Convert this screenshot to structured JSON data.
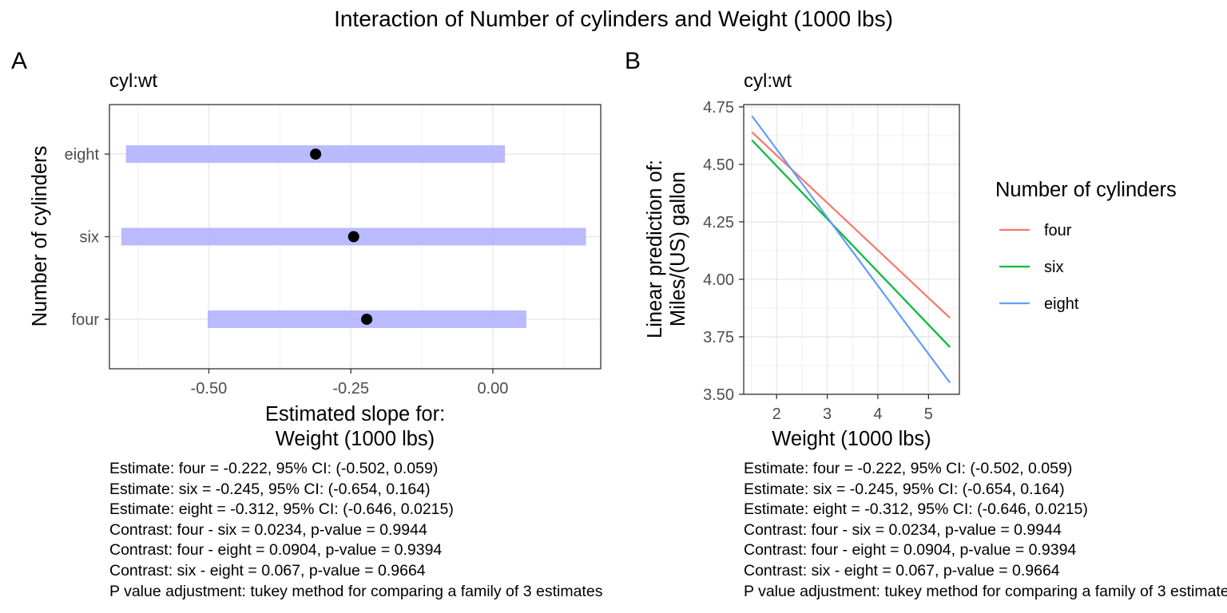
{
  "title": "Interaction of Number of cylinders and Weight (1000 lbs)",
  "chart_data": [
    {
      "type": "scatter",
      "tag": "A",
      "subtitle": "cyl:wt",
      "xlabel": "Estimated slope for:\nWeight (1000 lbs)",
      "ylabel": "Number of cylinders",
      "xlim": [
        -0.675,
        0.19
      ],
      "x_ticks": [
        -0.5,
        -0.25,
        0.0
      ],
      "x_tick_labels": [
        "-0.50",
        "-0.25",
        "0.00"
      ],
      "categories": [
        "four",
        "six",
        "eight"
      ],
      "estimates": [
        -0.222,
        -0.245,
        -0.312
      ],
      "ci_lower": [
        -0.502,
        -0.654,
        -0.646
      ],
      "ci_upper": [
        0.059,
        0.164,
        0.0215
      ],
      "ci_color": "#b3b3ff",
      "point_color": "#000000",
      "grid": true
    },
    {
      "type": "line",
      "tag": "B",
      "subtitle": "cyl:wt",
      "xlabel": "Weight (1000 lbs)",
      "ylabel": "Linear prediction of:\nMiles/(US) gallon",
      "xlim": [
        1.35,
        5.61
      ],
      "ylim": [
        3.5,
        4.76
      ],
      "x_ticks": [
        2,
        3,
        4,
        5
      ],
      "y_ticks": [
        3.5,
        3.75,
        4.0,
        4.25,
        4.5,
        4.75
      ],
      "y_tick_labels": [
        "3.50",
        "3.75",
        "4.00",
        "4.25",
        "4.50",
        "4.75"
      ],
      "legend_title": "Number of cylinders",
      "legend_position": "right",
      "series": [
        {
          "name": "four",
          "color": "#F8766D",
          "x": [
            1.513,
            5.424
          ],
          "y": [
            4.64,
            3.832
          ]
        },
        {
          "name": "six",
          "color": "#00BA38",
          "x": [
            1.513,
            5.424
          ],
          "y": [
            4.605,
            3.705
          ]
        },
        {
          "name": "eight",
          "color": "#619CFF",
          "x": [
            1.513,
            5.424
          ],
          "y": [
            4.71,
            3.55
          ]
        }
      ],
      "grid": true
    }
  ],
  "notes": [
    "Estimate: four = -0.222, 95% CI: (-0.502, 0.059)",
    "Estimate: six = -0.245, 95% CI: (-0.654, 0.164)",
    "Estimate: eight = -0.312, 95% CI: (-0.646, 0.0215)",
    "Contrast: four - six = 0.0234, p-value = 0.9944",
    "Contrast: four - eight = 0.0904, p-value = 0.9394",
    "Contrast: six - eight = 0.067, p-value = 0.9664",
    "P value adjustment: tukey method for comparing a family of 3 estimates"
  ]
}
